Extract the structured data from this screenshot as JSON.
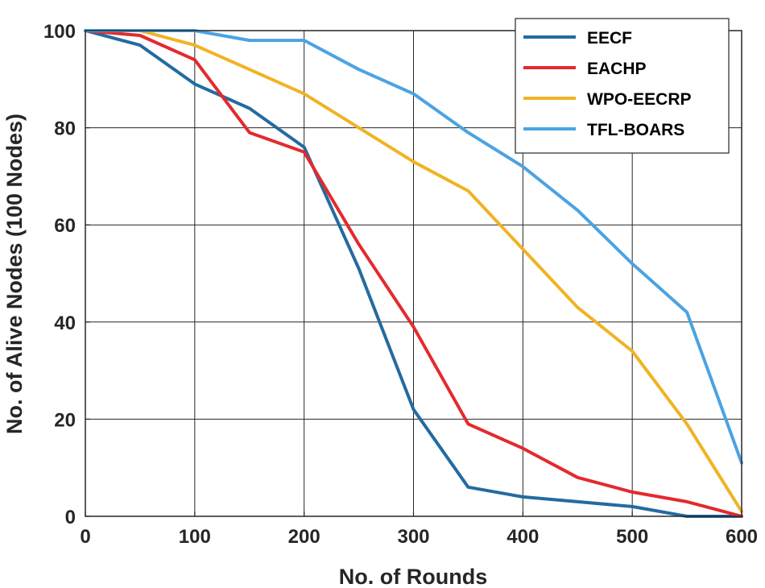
{
  "chart_data": {
    "type": "line",
    "title": "",
    "xlabel": "No. of Rounds",
    "ylabel": "No. of Alive Nodes (100 Nodes)",
    "xlim": [
      0,
      600
    ],
    "ylim": [
      0,
      100
    ],
    "xticks": [
      0,
      100,
      200,
      300,
      400,
      500,
      600
    ],
    "yticks": [
      0,
      20,
      40,
      60,
      80,
      100
    ],
    "grid": true,
    "legend_position": "top-right",
    "x": [
      0,
      50,
      100,
      150,
      200,
      250,
      300,
      350,
      400,
      450,
      500,
      550,
      600
    ],
    "series": [
      {
        "name": "EECF",
        "color": "#236ba0",
        "values": [
          100,
          97,
          89,
          84,
          76,
          51,
          22,
          6,
          4,
          3,
          2,
          0,
          0
        ]
      },
      {
        "name": "EACHP",
        "color": "#e32a2e",
        "values": [
          100,
          99,
          94,
          79,
          75,
          56,
          39,
          19,
          14,
          8,
          5,
          3,
          0
        ]
      },
      {
        "name": "WPO-EECRP",
        "color": "#f0b323",
        "values": [
          100,
          100,
          97,
          92,
          87,
          80,
          73,
          67,
          55,
          43,
          34,
          19,
          1
        ]
      },
      {
        "name": "TFL-BOARS",
        "color": "#4ba3e3",
        "values": [
          100,
          100,
          100,
          98,
          98,
          92,
          87,
          79,
          72,
          63,
          52,
          42,
          11
        ]
      }
    ]
  }
}
